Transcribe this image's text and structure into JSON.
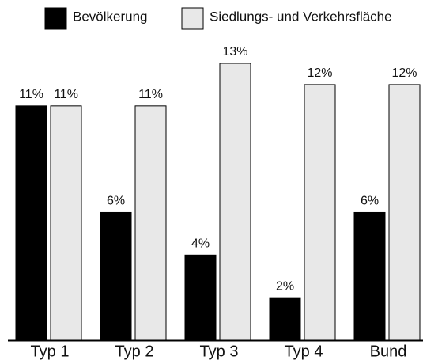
{
  "chart_data": {
    "type": "bar",
    "categories": [
      "Typ 1",
      "Typ 2",
      "Typ 3",
      "Typ 4",
      "Bund"
    ],
    "series": [
      {
        "name": "Bevölkerung",
        "color": "#000000",
        "values": [
          11,
          6,
          4,
          2,
          6
        ],
        "value_labels": [
          "11%",
          "6%",
          "4%",
          "2%",
          "6%"
        ]
      },
      {
        "name": "Siedlungs- und Verkehrsfläche",
        "color": "#e8e8e8",
        "values": [
          11,
          11,
          13,
          12,
          12
        ],
        "value_labels": [
          "11%",
          "11%",
          "13%",
          "12%",
          "12%"
        ]
      }
    ],
    "ylim": [
      0,
      13
    ]
  }
}
